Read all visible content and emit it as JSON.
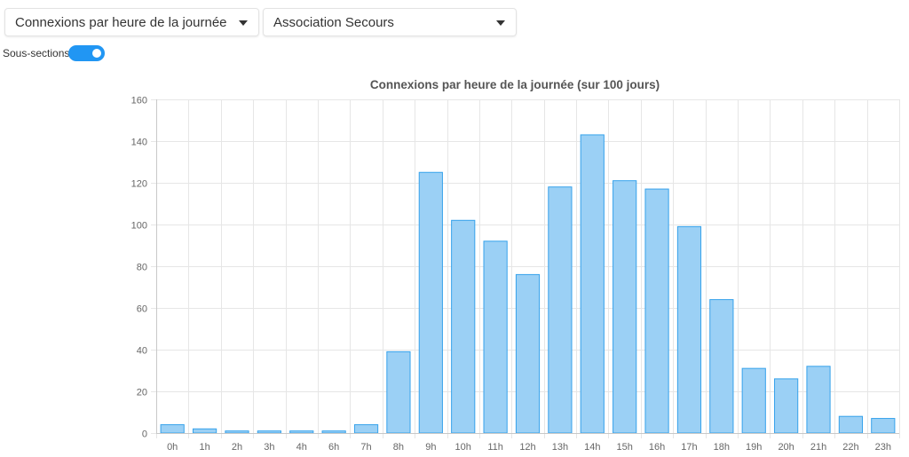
{
  "controls": {
    "metric_select": {
      "value": "Connexions par heure de la journée"
    },
    "org_select": {
      "value": "Association Secours"
    },
    "subsections_toggle": {
      "label": "Sous-sections",
      "checked": true
    }
  },
  "colors": {
    "bar_fill": "#9bd0f5",
    "bar_stroke": "#36a2eb",
    "grid": "#e6e6e6",
    "toggle": "#2196f3"
  },
  "chart_data": {
    "type": "bar",
    "title": "Connexions par heure de la journée (sur 100 jours)",
    "xlabel": "",
    "ylabel": "",
    "categories": [
      "0h",
      "1h",
      "2h",
      "3h",
      "4h",
      "6h",
      "7h",
      "8h",
      "9h",
      "10h",
      "11h",
      "12h",
      "13h",
      "14h",
      "15h",
      "16h",
      "17h",
      "18h",
      "19h",
      "20h",
      "21h",
      "22h",
      "23h"
    ],
    "values": [
      4,
      2,
      1,
      1,
      1,
      1,
      4,
      39,
      125,
      102,
      92,
      76,
      118,
      143,
      121,
      117,
      99,
      64,
      31,
      26,
      32,
      8,
      7
    ],
    "ylim": [
      0,
      160
    ],
    "yticks": [
      0,
      20,
      40,
      60,
      80,
      100,
      120,
      140,
      160
    ],
    "grid": true,
    "legend": "none"
  }
}
